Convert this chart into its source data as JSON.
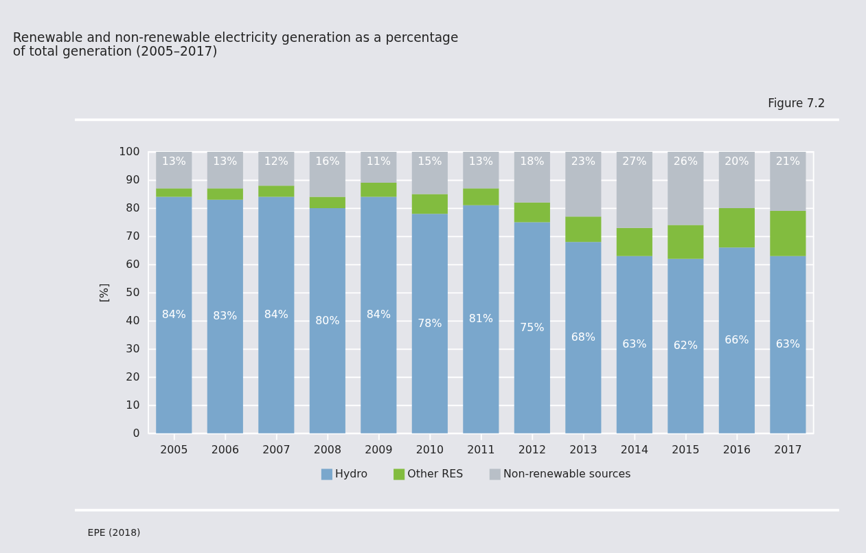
{
  "chart_data": {
    "type": "bar",
    "title": "Renewable and non-renewable electricity generation as a percentage\nof total generation (2005–2017)",
    "ylabel": "[%]",
    "categories": [
      "2005",
      "2006",
      "2007",
      "2008",
      "2009",
      "2010",
      "2011",
      "2012",
      "2013",
      "2014",
      "2015",
      "2016",
      "2017"
    ],
    "series": [
      {
        "name": "Hydro",
        "color": "#7aa7cc",
        "values": [
          84,
          83,
          84,
          80,
          84,
          78,
          81,
          75,
          68,
          63,
          62,
          66,
          63
        ],
        "value_labels": [
          "84%",
          "83%",
          "84%",
          "80%",
          "84%",
          "78%",
          "81%",
          "75%",
          "68%",
          "63%",
          "62%",
          "66%",
          "63%"
        ]
      },
      {
        "name": "Other RES",
        "color": "#82bc3f",
        "values": [
          3,
          4,
          4,
          4,
          5,
          7,
          6,
          7,
          9,
          10,
          12,
          14,
          16
        ]
      },
      {
        "name": "Non-renewable sources",
        "color": "#b8bfc7",
        "values": [
          13,
          13,
          12,
          16,
          11,
          15,
          13,
          18,
          23,
          27,
          26,
          20,
          21
        ],
        "value_labels": [
          "13%",
          "13%",
          "12%",
          "16%",
          "11%",
          "15%",
          "13%",
          "18%",
          "23%",
          "27%",
          "26%",
          "20%",
          "21%"
        ]
      }
    ],
    "stacked": true,
    "ylim": [
      0,
      100
    ],
    "yticks": [
      0,
      10,
      20,
      30,
      40,
      50,
      60,
      70,
      80,
      90,
      100
    ],
    "grid": "y",
    "legend": "bottom",
    "annotations": [
      "Figure 7.2",
      "EPE (2018)"
    ]
  }
}
